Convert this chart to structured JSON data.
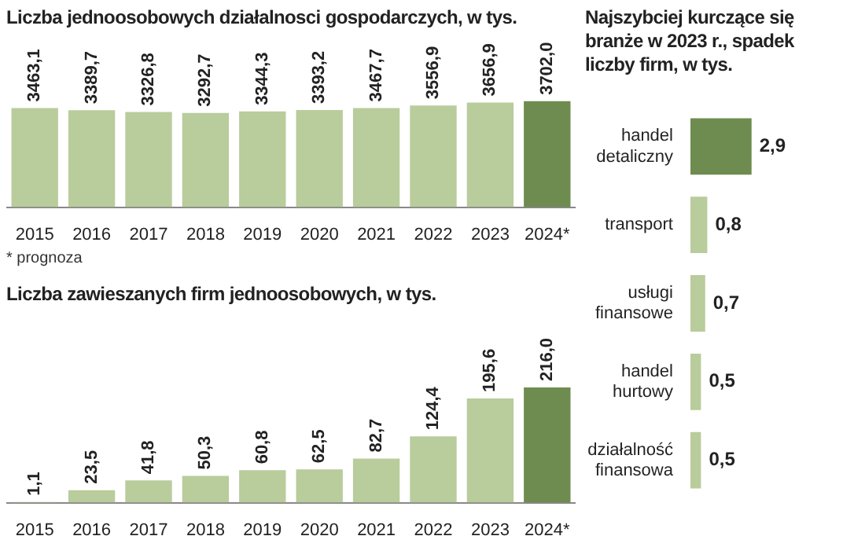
{
  "chart_data": [
    {
      "type": "bar",
      "title": "Liczba jednoosobowych działalnosci gospodarczych, w tys.",
      "categories": [
        "2015",
        "2016",
        "2017",
        "2018",
        "2019",
        "2020",
        "2021",
        "2022",
        "2023",
        "2024*"
      ],
      "values": [
        3463.1,
        3389.7,
        3326.8,
        3292.7,
        3344.3,
        3393.2,
        3467.7,
        3556.9,
        3656.9,
        3702.0
      ],
      "value_labels": [
        "3463,1",
        "3389,7",
        "3326,8",
        "3292,7",
        "3344,3",
        "3393,2",
        "3467,7",
        "3556,9",
        "3656,9",
        "3702,0"
      ],
      "colors": [
        "#b9cc9c",
        "#b9cc9c",
        "#b9cc9c",
        "#b9cc9c",
        "#b9cc9c",
        "#b9cc9c",
        "#b9cc9c",
        "#b9cc9c",
        "#b9cc9c",
        "#6e8c4f"
      ],
      "tick_labels": "x",
      "annotations": [
        "* prognoza"
      ]
    },
    {
      "type": "bar",
      "title": "Liczba zawieszanych firm jednoosobowych, w tys.",
      "categories": [
        "2015",
        "2016",
        "2017",
        "2018",
        "2019",
        "2020",
        "2021",
        "2022",
        "2023",
        "2024*"
      ],
      "values": [
        1.1,
        23.5,
        41.8,
        50.3,
        60.8,
        62.5,
        82.7,
        124.4,
        195.6,
        216.0
      ],
      "value_labels": [
        "1,1",
        "23,5",
        "41,8",
        "50,3",
        "60,8",
        "62,5",
        "82,7",
        "124,4",
        "195,6",
        "216,0"
      ],
      "colors": [
        "#b9cc9c",
        "#b9cc9c",
        "#b9cc9c",
        "#b9cc9c",
        "#b9cc9c",
        "#b9cc9c",
        "#b9cc9c",
        "#b9cc9c",
        "#b9cc9c",
        "#6e8c4f"
      ],
      "tick_labels": "x"
    },
    {
      "type": "bar",
      "orientation": "horizontal",
      "title": "Najszybciej kurczące się branże w 2023 r., spadek liczby firm, w tys.",
      "categories": [
        "handel detaliczny",
        "transport",
        "usługi finansowe",
        "handel hurtowy",
        "działalność finansowa"
      ],
      "values": [
        2.9,
        0.8,
        0.7,
        0.5,
        0.5
      ],
      "value_labels": [
        "2,9",
        "0,8",
        "0,7",
        "0,5",
        "0,5"
      ],
      "colors": [
        "#6e8c4f",
        "#b9cc9c",
        "#b9cc9c",
        "#b9cc9c",
        "#b9cc9c"
      ],
      "tick_labels": "y"
    }
  ]
}
